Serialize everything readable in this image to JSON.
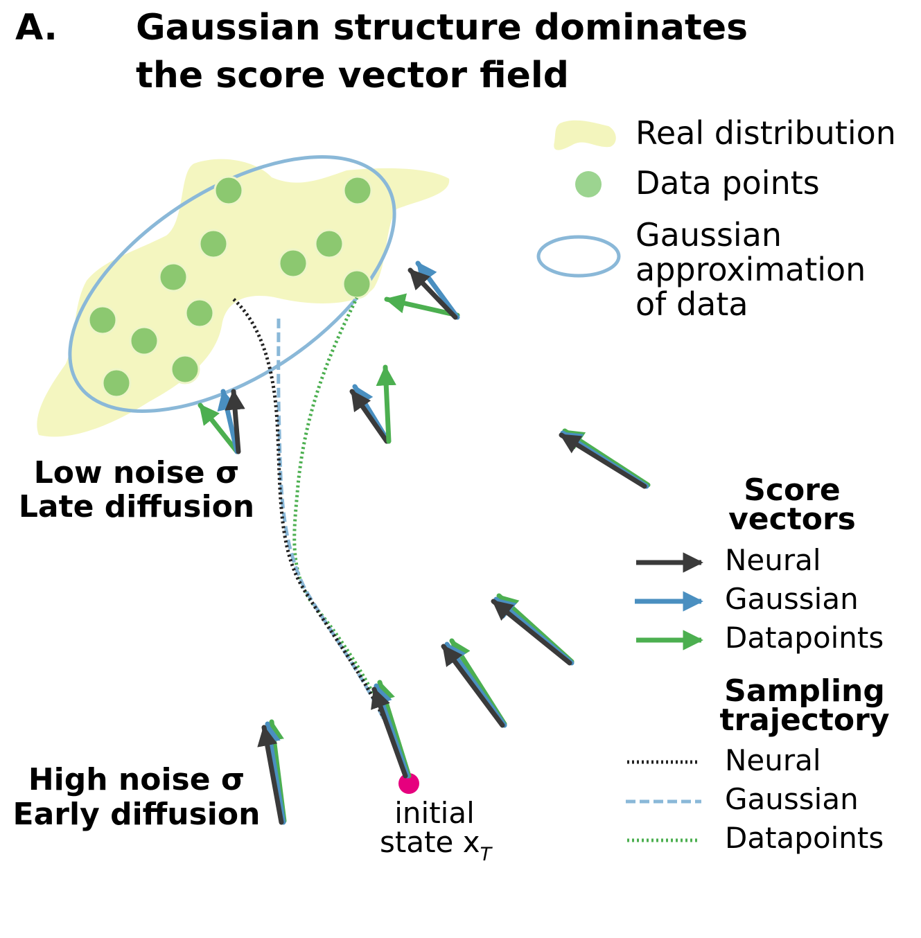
{
  "panel_label": "A.",
  "title_line1": "Gaussian structure dominates",
  "title_line2": "the score vector field",
  "legend_top": {
    "real_distribution": "Real distribution",
    "data_points": "Data points",
    "gaussian_line1": "Gaussian",
    "gaussian_line2": "approximation",
    "gaussian_line3": "of data"
  },
  "score_vectors": {
    "title_line1": "Score",
    "title_line2": "vectors",
    "neural": "Neural",
    "gaussian": "Gaussian",
    "datapoints": "Datapoints"
  },
  "sampling": {
    "title_line1": "Sampling",
    "title_line2": "trajectory",
    "neural": "Neural",
    "gaussian": "Gaussian",
    "datapoints": "Datapoints"
  },
  "low_noise_line1": "Low noise σ",
  "low_noise_line2": "Late diffusion",
  "high_noise_line1": "High noise σ",
  "high_noise_line2": "Early diffusion",
  "initial_line1": "initial",
  "initial_line2": "state x",
  "initial_sub": "T",
  "colors": {
    "neural": "#3a3a3a",
    "gaussian": "#4a8fc0",
    "datapoints": "#4caf50",
    "distribution": "#f3f5bd",
    "data_point": "#8cc870",
    "ellipse": "#8ab8d8",
    "initial": "#e6007e"
  }
}
